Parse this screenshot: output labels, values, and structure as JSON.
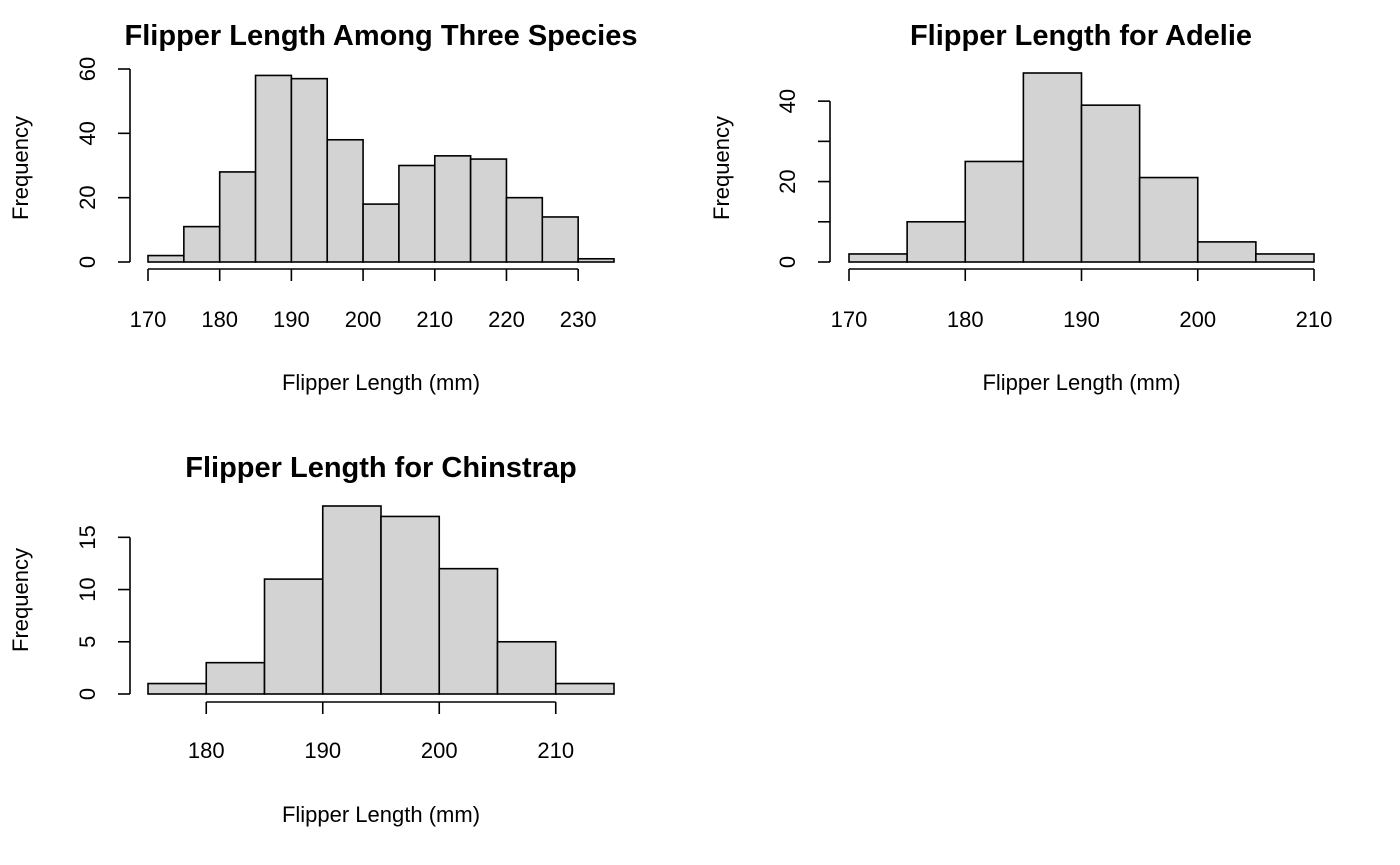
{
  "chart_data": [
    {
      "type": "bar",
      "title": "Flipper Length Among Three Species",
      "xlabel": "Flipper Length (mm)",
      "ylabel": "Frequency",
      "bin_edges": [
        170,
        175,
        180,
        185,
        190,
        195,
        200,
        205,
        210,
        215,
        220,
        225,
        230,
        235
      ],
      "values": [
        2,
        11,
        28,
        58,
        57,
        38,
        18,
        30,
        33,
        32,
        20,
        14,
        1
      ],
      "xticks": [
        170,
        180,
        190,
        200,
        210,
        220,
        230
      ],
      "yticks": [
        0,
        20,
        40,
        60
      ],
      "xlim": [
        170,
        235
      ],
      "ylim": [
        0,
        60
      ],
      "grid": false
    },
    {
      "type": "bar",
      "title": "Flipper Length for Adelie",
      "xlabel": "Flipper Length (mm)",
      "ylabel": "Frequency",
      "bin_edges": [
        170,
        175,
        180,
        185,
        190,
        195,
        200,
        205,
        210
      ],
      "values": [
        2,
        10,
        25,
        47,
        39,
        21,
        5,
        2
      ],
      "xticks": [
        170,
        180,
        190,
        200,
        210
      ],
      "yticks": [
        0,
        20,
        40
      ],
      "minor_yticks": [
        10,
        30
      ],
      "xlim": [
        170,
        210
      ],
      "ylim": [
        0,
        47
      ],
      "grid": false
    },
    {
      "type": "bar",
      "title": "Flipper Length for Chinstrap",
      "xlabel": "Flipper Length (mm)",
      "ylabel": "Frequency",
      "bin_edges": [
        175,
        180,
        185,
        190,
        195,
        200,
        205,
        210,
        215
      ],
      "values": [
        1,
        3,
        11,
        18,
        17,
        12,
        5,
        1
      ],
      "xticks": [
        180,
        190,
        200,
        210
      ],
      "yticks": [
        0,
        5,
        10,
        15
      ],
      "xlim": [
        175,
        215
      ],
      "ylim": [
        0,
        18
      ],
      "grid": false
    }
  ]
}
